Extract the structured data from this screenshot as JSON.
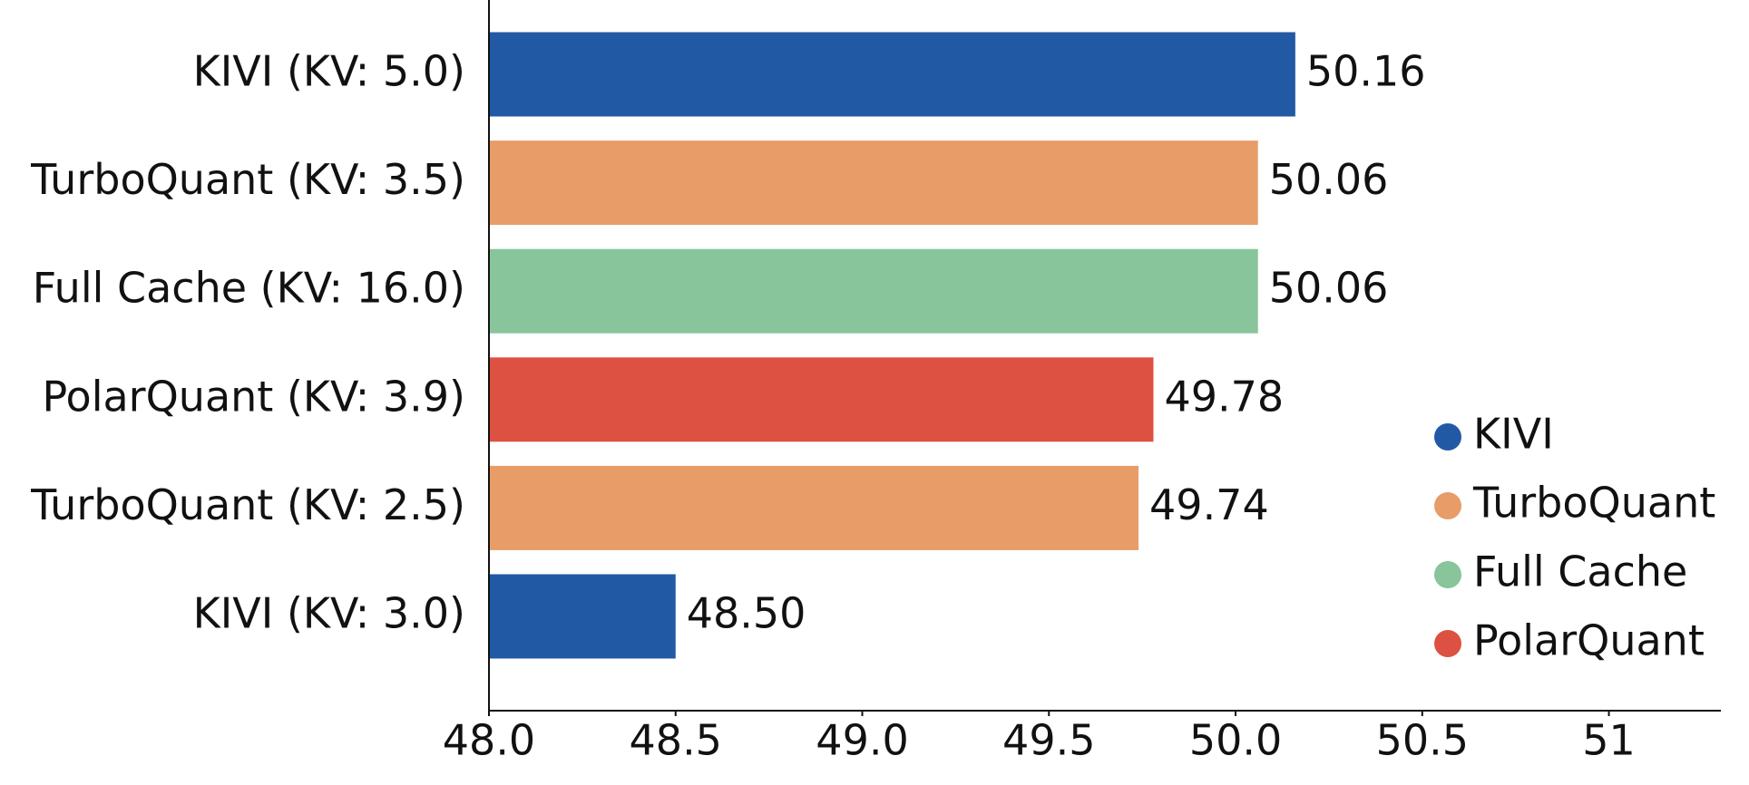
{
  "chart_data": {
    "type": "hbar",
    "categories": [
      "KIVI (KV: 5.0)",
      "TurboQuant (KV: 3.5)",
      "Full Cache (KV: 16.0)",
      "PolarQuant (KV: 3.9)",
      "TurboQuant (KV: 2.5)",
      "KIVI (KV: 3.0)"
    ],
    "values": [
      50.16,
      50.06,
      50.06,
      49.78,
      49.74,
      48.5
    ],
    "value_labels": [
      "50.16",
      "50.06",
      "50.06",
      "49.78",
      "49.74",
      "48.50"
    ],
    "colors": [
      "#2259a4",
      "#e89c68",
      "#88c59a",
      "#dd5142",
      "#e89c68",
      "#2259a4"
    ],
    "xlim": [
      48,
      51.3
    ],
    "xticks": [
      {
        "value": 48,
        "label": "48.0"
      },
      48.5,
      {
        "value": 49,
        "label": "49.0"
      },
      49.5,
      {
        "value": 50,
        "label": "50.0"
      },
      50.5,
      51
    ],
    "legend": [
      {
        "name": "KIVI",
        "color": "#2259a4"
      },
      {
        "name": "TurboQuant",
        "color": "#e89c68"
      },
      {
        "name": "Full Cache",
        "color": "#88c59a"
      },
      {
        "name": "PolarQuant",
        "color": "#dd5142"
      }
    ],
    "legend_position": "lower right"
  }
}
